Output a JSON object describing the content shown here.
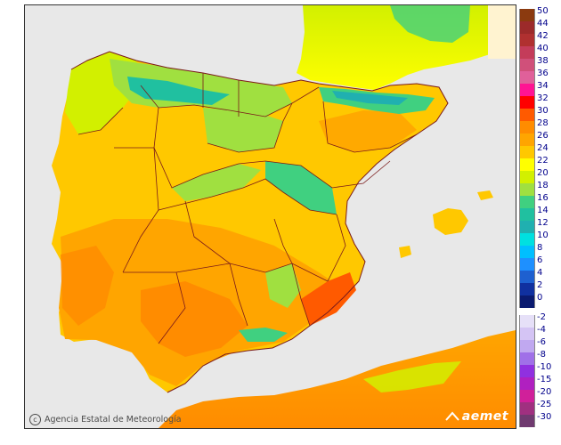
{
  "map": {
    "credit": "Agencia Estatal de Meteorología",
    "brand": "aemet",
    "colors": {
      "sea": "#e8e8e8",
      "border": "#7a1a1a",
      "frame": "#333333"
    },
    "icons": [
      "copyright-icon",
      "aemet-logo-icon"
    ]
  },
  "legend": {
    "positive": [
      {
        "label": "50",
        "color": "#8b3a0f"
      },
      {
        "label": "44",
        "color": "#9c2a2a"
      },
      {
        "label": "42",
        "color": "#b03030"
      },
      {
        "label": "40",
        "color": "#c43c5a"
      },
      {
        "label": "38",
        "color": "#d0507a"
      },
      {
        "label": "36",
        "color": "#e0609a"
      },
      {
        "label": "34",
        "color": "#ff1493"
      },
      {
        "label": "32",
        "color": "#ff0000"
      },
      {
        "label": "30",
        "color": "#ff5a00"
      },
      {
        "label": "28",
        "color": "#ff8c00"
      },
      {
        "label": "26",
        "color": "#ffa500"
      },
      {
        "label": "24",
        "color": "#ffc800"
      },
      {
        "label": "22",
        "color": "#ffff00"
      },
      {
        "label": "20",
        "color": "#d2f000"
      },
      {
        "label": "18",
        "color": "#a0e040"
      },
      {
        "label": "16",
        "color": "#40d080"
      },
      {
        "label": "14",
        "color": "#20c0a0"
      },
      {
        "label": "12",
        "color": "#20b0b0"
      },
      {
        "label": "10",
        "color": "#00e0e0"
      },
      {
        "label": "8",
        "color": "#00bfff"
      },
      {
        "label": "6",
        "color": "#1e90ff"
      },
      {
        "label": "4",
        "color": "#1e60d0"
      },
      {
        "label": "2",
        "color": "#1030a0"
      },
      {
        "label": "0",
        "color": "#0a1a70"
      }
    ],
    "negative": [
      {
        "label": "-2",
        "color": "#e6e0f8"
      },
      {
        "label": "-4",
        "color": "#d4c4f4"
      },
      {
        "label": "-6",
        "color": "#c0a8f0"
      },
      {
        "label": "-8",
        "color": "#a070e8"
      },
      {
        "label": "-10",
        "color": "#9030e0"
      },
      {
        "label": "-15",
        "color": "#b020c0"
      },
      {
        "label": "-20",
        "color": "#d0209a"
      },
      {
        "label": "-25",
        "color": "#a03080"
      },
      {
        "label": "-30",
        "color": "#703a70"
      }
    ]
  }
}
